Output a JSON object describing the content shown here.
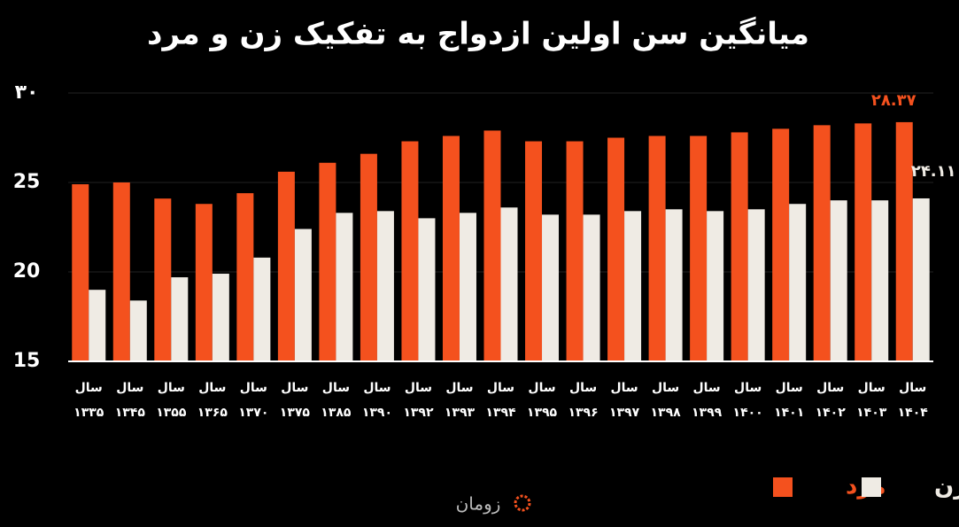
{
  "chart_data": {
    "type": "bar",
    "title": "میانگین سن اولین ازدواج به تفکیک زن و مرد",
    "categories": [
      "سال ۱۳۳۵",
      "سال ۱۳۴۵",
      "سال ۱۳۵۵",
      "سال ۱۳۶۵",
      "سال ۱۳۷۰",
      "سال ۱۳۷۵",
      "سال ۱۳۸۵",
      "سال ۱۳۹۰",
      "سال ۱۳۹۲",
      "سال ۱۳۹۳",
      "سال ۱۳۹۴",
      "سال ۱۳۹۵",
      "سال ۱۳۹۶",
      "سال ۱۳۹۷",
      "سال ۱۳۹۸",
      "سال ۱۳۹۹",
      "سال ۱۴۰۰",
      "سال ۱۴۰۱",
      "سال ۱۴۰۲",
      "سال ۱۴۰۳",
      "سال ۱۴۰۴"
    ],
    "series": [
      {
        "name": "مرد",
        "color": "#f4511e",
        "values": [
          24.9,
          25.0,
          24.1,
          23.8,
          24.4,
          25.6,
          26.1,
          26.6,
          27.3,
          27.6,
          27.9,
          27.3,
          27.3,
          27.5,
          27.6,
          27.6,
          27.8,
          28.0,
          28.2,
          28.3,
          28.37
        ],
        "value_labels": [
          null,
          null,
          null,
          null,
          null,
          null,
          null,
          null,
          null,
          null,
          null,
          null,
          null,
          null,
          null,
          null,
          null,
          null,
          null,
          null,
          "۲۸.۳۷"
        ]
      },
      {
        "name": "زن",
        "color": "#efebe4",
        "values": [
          19.0,
          18.4,
          19.7,
          19.9,
          20.8,
          22.4,
          23.3,
          23.4,
          23.0,
          23.3,
          23.6,
          23.2,
          23.2,
          23.4,
          23.5,
          23.4,
          23.5,
          23.8,
          24.0,
          24.0,
          24.11
        ],
        "value_labels": [
          null,
          null,
          null,
          null,
          null,
          null,
          null,
          null,
          null,
          null,
          null,
          null,
          null,
          null,
          null,
          null,
          null,
          null,
          null,
          null,
          "۲۴.۱۱"
        ]
      }
    ],
    "ylim": [
      15,
      30
    ],
    "yticks": [
      15,
      20,
      25,
      {
        "value": 30,
        "label": "۳۰"
      }
    ],
    "grid": true,
    "logo": "زومان"
  }
}
